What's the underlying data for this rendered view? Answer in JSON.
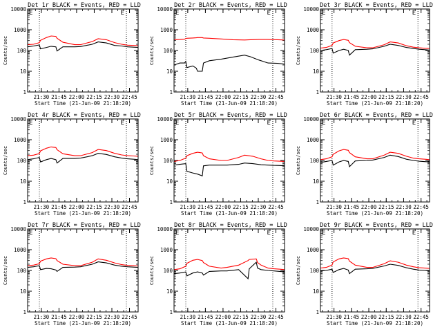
{
  "figure": {
    "start_time_label": "Start Time (21-Jun-09 21:18:20)",
    "ylabel": "Counts/sec",
    "legend_marker": "E"
  },
  "colors": {
    "background": "#ffffff",
    "axes": "#000000",
    "events": "#000000",
    "lld": "#ff0000"
  },
  "chart_data": [
    {
      "type": "line",
      "title": "Det 1r BLACK = Events, RED = LLD",
      "xlabel": "Start Time (21-Jun-09 21:18:20)",
      "ylabel": "Counts/sec",
      "x_ticks": [
        "21:30",
        "21:45",
        "22:00",
        "22:15",
        "22:30",
        "22:45"
      ],
      "y_ticks": [
        "1",
        "10",
        "100",
        "1000",
        "10000"
      ],
      "y_scale": "log",
      "ylim": [
        1,
        10000
      ],
      "xlim": [
        0,
        94
      ],
      "x_unit": "minutes since 21:18:20",
      "dotted_vlines": [
        10,
        84
      ],
      "x": [
        0,
        5,
        10,
        11,
        16,
        20,
        24,
        25,
        30,
        40,
        45,
        55,
        60,
        67,
        74,
        80,
        85,
        90,
        94
      ],
      "series": [
        {
          "name": "Events",
          "color": "#000000",
          "values": [
            150,
            165,
            185,
            120,
            140,
            160,
            150,
            95,
            150,
            150,
            155,
            200,
            260,
            230,
            175,
            165,
            150,
            145,
            140
          ]
        },
        {
          "name": "LLD",
          "color": "#ff0000",
          "values": [
            190,
            200,
            240,
            310,
            420,
            500,
            480,
            390,
            250,
            190,
            190,
            270,
            370,
            330,
            240,
            200,
            180,
            175,
            170
          ]
        }
      ]
    },
    {
      "type": "line",
      "title": "Det 2r BLACK = Events, RED = LLD",
      "xlabel": "Start Time (21-Jun-09 21:18:20)",
      "ylabel": "Counts/sec",
      "x_ticks": [
        "21:30",
        "21:45",
        "22:00",
        "22:15",
        "22:30",
        "22:45"
      ],
      "y_ticks": [
        "1",
        "10",
        "100",
        "1000",
        "10000"
      ],
      "y_scale": "log",
      "ylim": [
        1,
        10000
      ],
      "xlim": [
        0,
        94
      ],
      "x_unit": "minutes since 21:18:20",
      "dotted_vlines": [
        10,
        84
      ],
      "x": [
        0,
        5,
        9,
        10,
        11,
        16,
        19,
        20,
        24,
        25,
        30,
        40,
        50,
        60,
        65,
        72,
        80,
        88,
        94
      ],
      "series": [
        {
          "name": "Events",
          "color": "#000000",
          "values": [
            20,
            25,
            25,
            30,
            15,
            18,
            14,
            10,
            10,
            25,
            32,
            38,
            48,
            60,
            50,
            35,
            25,
            24,
            22
          ]
        },
        {
          "name": "LLD",
          "color": "#ff0000",
          "values": [
            330,
            340,
            350,
            380,
            390,
            400,
            410,
            420,
            420,
            400,
            390,
            360,
            330,
            320,
            330,
            340,
            340,
            330,
            320
          ]
        }
      ]
    },
    {
      "type": "line",
      "title": "Det 3r BLACK = Events, RED = LLD",
      "xlabel": "Start Time (21-Jun-09 21:18:20)",
      "ylabel": "Counts/sec",
      "x_ticks": [
        "21:30",
        "21:45",
        "22:00",
        "22:15",
        "22:30",
        "22:45"
      ],
      "y_ticks": [
        "1",
        "10",
        "100",
        "1000",
        "10000"
      ],
      "y_scale": "log",
      "ylim": [
        1,
        10000
      ],
      "xlim": [
        0,
        94
      ],
      "x_unit": "minutes since 21:18:20",
      "dotted_vlines": [
        10,
        84
      ],
      "x": [
        0,
        5,
        10,
        11,
        16,
        20,
        24,
        25,
        30,
        40,
        45,
        55,
        60,
        67,
        74,
        80,
        85,
        90,
        94
      ],
      "series": [
        {
          "name": "Events",
          "color": "#000000",
          "values": [
            100,
            110,
            125,
            75,
            100,
            115,
            100,
            60,
            110,
            115,
            120,
            160,
            200,
            175,
            140,
            125,
            115,
            110,
            105
          ]
        },
        {
          "name": "LLD",
          "color": "#ff0000",
          "values": [
            130,
            140,
            175,
            230,
            300,
            340,
            310,
            240,
            160,
            135,
            135,
            190,
            260,
            230,
            170,
            145,
            135,
            128,
            125
          ]
        }
      ]
    },
    {
      "type": "line",
      "title": "Det 4r BLACK = Events, RED = LLD",
      "xlabel": "Start Time (21-Jun-09 21:18:20)",
      "ylabel": "Counts/sec",
      "x_ticks": [
        "21:30",
        "21:45",
        "22:00",
        "22:15",
        "22:30",
        "22:45"
      ],
      "y_ticks": [
        "1",
        "10",
        "100",
        "1000",
        "10000"
      ],
      "y_scale": "log",
      "ylim": [
        1,
        10000
      ],
      "xlim": [
        0,
        94
      ],
      "x_unit": "minutes since 21:18:20",
      "dotted_vlines": [
        10,
        84
      ],
      "x": [
        0,
        5,
        10,
        11,
        16,
        20,
        24,
        25,
        30,
        40,
        45,
        55,
        60,
        67,
        74,
        80,
        85,
        90,
        94
      ],
      "series": [
        {
          "name": "Events",
          "color": "#000000",
          "values": [
            110,
            120,
            140,
            85,
            110,
            125,
            110,
            75,
            125,
            125,
            130,
            170,
            220,
            195,
            150,
            130,
            120,
            115,
            110
          ]
        },
        {
          "name": "LLD",
          "color": "#ff0000",
          "values": [
            170,
            180,
            215,
            290,
            390,
            450,
            420,
            330,
            210,
            170,
            170,
            240,
            340,
            300,
            220,
            185,
            170,
            165,
            160
          ]
        }
      ]
    },
    {
      "type": "line",
      "title": "Det 5r BLACK = Events, RED = LLD",
      "xlabel": "Start Time (21-Jun-09 21:18:20)",
      "ylabel": "Counts/sec",
      "x_ticks": [
        "21:30",
        "21:45",
        "22:00",
        "22:15",
        "22:30",
        "22:45"
      ],
      "y_ticks": [
        "1",
        "10",
        "100",
        "1000",
        "10000"
      ],
      "y_scale": "log",
      "ylim": [
        1,
        10000
      ],
      "xlim": [
        0,
        94
      ],
      "x_unit": "minutes since 21:18:20",
      "dotted_vlines": [
        10,
        84
      ],
      "x": [
        0,
        5,
        10,
        11,
        16,
        20,
        24,
        25,
        30,
        40,
        45,
        55,
        60,
        67,
        74,
        80,
        85,
        90,
        94
      ],
      "series": [
        {
          "name": "Events",
          "color": "#000000",
          "values": [
            60,
            65,
            70,
            30,
            25,
            22,
            18,
            55,
            60,
            60,
            60,
            65,
            75,
            70,
            62,
            60,
            58,
            57,
            55
          ]
        },
        {
          "name": "LLD",
          "color": "#ff0000",
          "values": [
            90,
            100,
            130,
            170,
            220,
            250,
            230,
            170,
            120,
            100,
            100,
            140,
            180,
            160,
            120,
            100,
            95,
            92,
            90
          ]
        }
      ]
    },
    {
      "type": "line",
      "title": "Det 6r BLACK = Events, RED = LLD",
      "xlabel": "Start Time (21-Jun-09 21:18:20)",
      "ylabel": "Counts/sec",
      "x_ticks": [
        "21:30",
        "21:45",
        "22:00",
        "22:15",
        "22:30",
        "22:45"
      ],
      "y_ticks": [
        "1",
        "10",
        "100",
        "1000",
        "10000"
      ],
      "y_scale": "log",
      "ylim": [
        1,
        10000
      ],
      "xlim": [
        0,
        94
      ],
      "x_unit": "minutes since 21:18:20",
      "dotted_vlines": [
        10,
        84
      ],
      "x": [
        0,
        5,
        10,
        11,
        16,
        20,
        24,
        25,
        30,
        40,
        45,
        55,
        60,
        67,
        74,
        80,
        85,
        90,
        94
      ],
      "series": [
        {
          "name": "Events",
          "color": "#000000",
          "values": [
            80,
            90,
            100,
            60,
            85,
            100,
            90,
            50,
            95,
            100,
            105,
            140,
            180,
            155,
            115,
            100,
            92,
            88,
            85
          ]
        },
        {
          "name": "LLD",
          "color": "#ff0000",
          "values": [
            110,
            120,
            150,
            200,
            290,
            340,
            310,
            240,
            150,
            120,
            120,
            180,
            250,
            220,
            160,
            130,
            120,
            115,
            110
          ]
        }
      ]
    },
    {
      "type": "line",
      "title": "Det 7r BLACK = Events, RED = LLD",
      "xlabel": "Start Time (21-Jun-09 21:18:20)",
      "ylabel": "Counts/sec",
      "x_ticks": [
        "21:30",
        "21:45",
        "22:00",
        "22:15",
        "22:30",
        "22:45"
      ],
      "y_ticks": [
        "1",
        "10",
        "100",
        "1000",
        "10000"
      ],
      "y_scale": "log",
      "ylim": [
        1,
        10000
      ],
      "xlim": [
        0,
        94
      ],
      "x_unit": "minutes since 21:18:20",
      "dotted_vlines": [
        10,
        84
      ],
      "x": [
        0,
        5,
        10,
        11,
        16,
        20,
        24,
        25,
        30,
        40,
        45,
        55,
        60,
        67,
        74,
        80,
        85,
        90,
        94
      ],
      "series": [
        {
          "name": "Events",
          "color": "#000000",
          "values": [
            140,
            150,
            170,
            110,
            125,
            120,
            105,
            90,
            140,
            145,
            150,
            200,
            260,
            230,
            180,
            160,
            150,
            145,
            140
          ]
        },
        {
          "name": "LLD",
          "color": "#ff0000",
          "values": [
            170,
            180,
            210,
            280,
            360,
            400,
            370,
            300,
            200,
            170,
            170,
            250,
            360,
            310,
            230,
            190,
            175,
            170,
            165
          ]
        }
      ]
    },
    {
      "type": "line",
      "title": "Det 8r BLACK = Events, RED = LLD",
      "xlabel": "Start Time (21-Jun-09 21:18:20)",
      "ylabel": "Counts/sec",
      "x_ticks": [
        "21:30",
        "21:45",
        "22:00",
        "22:15",
        "22:30",
        "22:45"
      ],
      "y_ticks": [
        "1",
        "10",
        "100",
        "1000",
        "10000"
      ],
      "y_scale": "log",
      "ylim": [
        1,
        10000
      ],
      "xlim": [
        0,
        94
      ],
      "x_unit": "minutes since 21:18:20",
      "dotted_vlines": [
        10,
        84
      ],
      "x": [
        0,
        5,
        10,
        11,
        16,
        20,
        24,
        25,
        30,
        40,
        45,
        55,
        63,
        64,
        70,
        71,
        74,
        80,
        85,
        90,
        94
      ],
      "series": [
        {
          "name": "Events",
          "color": "#000000",
          "values": [
            70,
            75,
            85,
            55,
            75,
            85,
            75,
            60,
            90,
            95,
            95,
            110,
            40,
            120,
            250,
            130,
            110,
            100,
            95,
            90,
            85
          ]
        },
        {
          "name": "LLD",
          "color": "#ff0000",
          "values": [
            110,
            120,
            160,
            220,
            310,
            340,
            300,
            240,
            160,
            130,
            140,
            180,
            300,
            340,
            360,
            240,
            180,
            130,
            120,
            115,
            110
          ]
        }
      ]
    },
    {
      "type": "line",
      "title": "Det 9r BLACK = Events, RED = LLD",
      "xlabel": "Start Time (21-Jun-09 21:18:20)",
      "ylabel": "Counts/sec",
      "x_ticks": [
        "21:30",
        "21:45",
        "22:00",
        "22:15",
        "22:30",
        "22:45"
      ],
      "y_ticks": [
        "1",
        "10",
        "100",
        "1000",
        "10000"
      ],
      "y_scale": "log",
      "ylim": [
        1,
        10000
      ],
      "xlim": [
        0,
        94
      ],
      "x_unit": "minutes since 21:18:20",
      "dotted_vlines": [
        10,
        84
      ],
      "x": [
        0,
        5,
        10,
        11,
        16,
        20,
        24,
        25,
        30,
        40,
        45,
        55,
        60,
        67,
        74,
        80,
        85,
        90,
        94
      ],
      "series": [
        {
          "name": "Events",
          "color": "#000000",
          "values": [
            95,
            100,
            115,
            80,
            110,
            125,
            105,
            70,
            115,
            120,
            125,
            165,
            200,
            175,
            135,
            115,
            105,
            100,
            95
          ]
        },
        {
          "name": "LLD",
          "color": "#ff0000",
          "values": [
            130,
            140,
            180,
            260,
            360,
            400,
            370,
            280,
            180,
            140,
            140,
            210,
            290,
            250,
            180,
            150,
            135,
            130,
            125
          ]
        }
      ]
    }
  ]
}
